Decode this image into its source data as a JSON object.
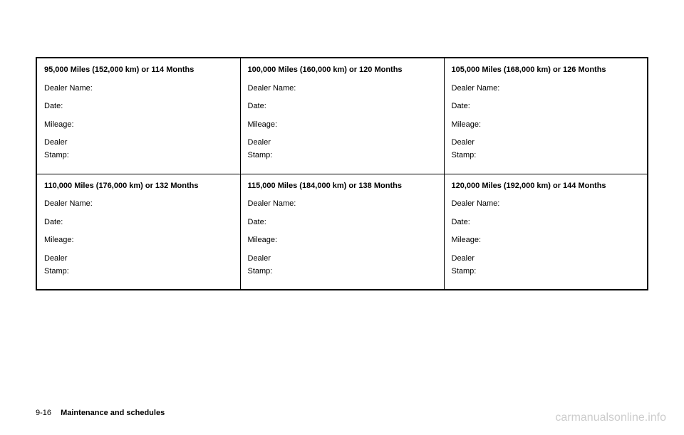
{
  "table": {
    "rows": [
      [
        {
          "header": "95,000 Miles (152,000 km) or 114 Months",
          "fields": [
            "Dealer Name:",
            "Date:",
            "Mileage:",
            "Dealer\nStamp:"
          ]
        },
        {
          "header": "100,000 Miles (160,000 km) or 120 Months",
          "fields": [
            "Dealer Name:",
            "Date:",
            "Mileage:",
            "Dealer\nStamp:"
          ]
        },
        {
          "header": "105,000 Miles (168,000 km) or 126 Months",
          "fields": [
            "Dealer Name:",
            "Date:",
            "Mileage:",
            "Dealer\nStamp:"
          ]
        }
      ],
      [
        {
          "header": "110,000 Miles (176,000 km) or 132 Months",
          "fields": [
            "Dealer Name:",
            "Date:",
            "Mileage:",
            "Dealer\nStamp:"
          ]
        },
        {
          "header": "115,000 Miles (184,000 km) or 138 Months",
          "fields": [
            "Dealer Name:",
            "Date:",
            "Mileage:",
            "Dealer\nStamp:"
          ]
        },
        {
          "header": "120,000 Miles (192,000 km) or 144 Months",
          "fields": [
            "Dealer Name:",
            "Date:",
            "Mileage:",
            "Dealer\nStamp:"
          ]
        }
      ]
    ]
  },
  "footer": {
    "page": "9-16",
    "section": "Maintenance and schedules"
  },
  "watermark": "carmanualsonline.info",
  "colors": {
    "background": "#ffffff",
    "border": "#000000",
    "text": "#000000",
    "watermark": "#cccccc"
  }
}
